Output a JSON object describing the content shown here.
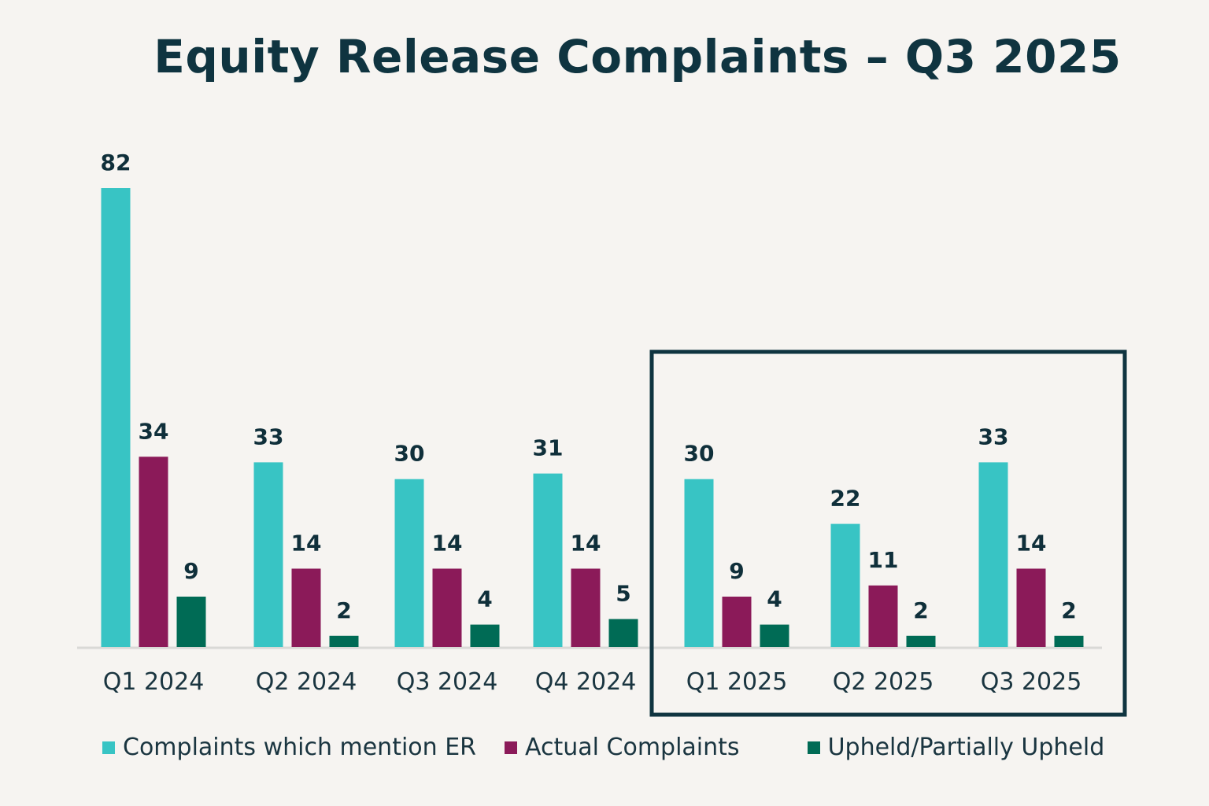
{
  "chart_data": {
    "type": "bar",
    "title": "Equity Release Complaints – Q3 2025",
    "xlabel": "",
    "ylabel": "",
    "ylim": [
      0,
      82
    ],
    "grid": false,
    "legend_position": "bottom",
    "categories": [
      "Q1 2024",
      "Q2 2024",
      "Q3 2024",
      "Q4 2024",
      "Q1 2025",
      "Q2 2025",
      "Q3 2025"
    ],
    "series": [
      {
        "name": "Complaints which mention ER",
        "color": "#38c4c4",
        "values": [
          82,
          33,
          30,
          31,
          30,
          22,
          33
        ]
      },
      {
        "name": "Actual Complaints",
        "color": "#8b1a59",
        "values": [
          34,
          14,
          14,
          14,
          9,
          11,
          14
        ]
      },
      {
        "name": "Upheld/Partially Upheld",
        "color": "#006b55",
        "values": [
          9,
          2,
          4,
          5,
          4,
          2,
          2
        ]
      }
    ],
    "highlight": {
      "categories": [
        "Q1 2025",
        "Q2 2025",
        "Q3 2025"
      ],
      "color": "#0f3440"
    }
  }
}
